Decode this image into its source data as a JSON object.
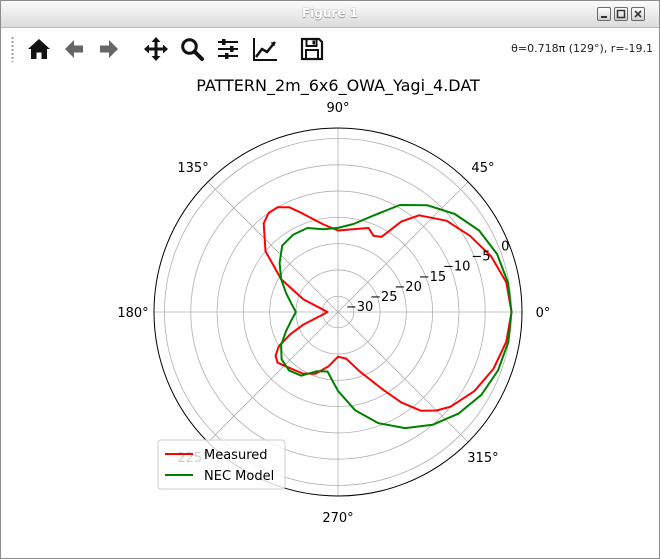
{
  "window": {
    "title": "Figure 1",
    "controls": [
      "minimize",
      "maximize",
      "close"
    ]
  },
  "toolbar": {
    "buttons": [
      {
        "name": "home",
        "icon": "home-icon"
      },
      {
        "name": "back",
        "icon": "arrow-left-icon"
      },
      {
        "name": "forward",
        "icon": "arrow-right-icon"
      },
      {
        "name": "pan",
        "icon": "move-icon"
      },
      {
        "name": "zoom",
        "icon": "magnifier-icon"
      },
      {
        "name": "configure-subplots",
        "icon": "sliders-icon"
      },
      {
        "name": "edit-axis",
        "icon": "line-chart-icon"
      },
      {
        "name": "save",
        "icon": "floppy-disk-icon"
      }
    ],
    "coords": "θ=0.718π (129°), r=-19.1"
  },
  "chart_data": {
    "type": "polar-line",
    "title": "PATTERN_2m_6x6_OWA_Yagi_4.DAT",
    "angle_ticks": [
      "0°",
      "45°",
      "90°",
      "135°",
      "180°",
      "225°",
      "270°",
      "315°"
    ],
    "angle_tick_values": [
      0,
      45,
      90,
      135,
      180,
      225,
      270,
      315
    ],
    "r_ticks": [
      "−30",
      "−25",
      "−20",
      "−15",
      "−10",
      "−5",
      "0"
    ],
    "r_tick_values": [
      -30,
      -25,
      -20,
      -15,
      -10,
      -5,
      0
    ],
    "rlim": [
      -33,
      2
    ],
    "r_label_angle_deg": 22.5,
    "grid": true,
    "legend_loc": "lower-left",
    "series": [
      {
        "name": "Measured",
        "color": "#ff0000",
        "angles_deg": [
          0,
          10,
          20,
          30,
          40,
          50,
          55,
          60,
          65,
          70,
          80,
          90,
          100,
          110,
          115,
          120,
          125,
          130,
          140,
          150,
          160,
          170,
          180,
          190,
          200,
          205,
          210,
          215,
          220,
          230,
          240,
          250,
          260,
          270,
          280,
          290,
          300,
          305,
          310,
          315,
          320,
          330,
          340,
          350
        ],
        "values_db": [
          0.0,
          -0.5,
          -2.0,
          -4.0,
          -6.0,
          -9.0,
          -12.0,
          -16.5,
          -17.0,
          -16.0,
          -17.0,
          -17.5,
          -16.0,
          -13.0,
          -11.0,
          -10.0,
          -10.0,
          -11.0,
          -15.0,
          -20.5,
          -26.0,
          -30.0,
          -31.0,
          -30.0,
          -26.0,
          -23.0,
          -20.0,
          -18.5,
          -18.0,
          -19.0,
          -19.5,
          -20.5,
          -22.5,
          -24.5,
          -24.0,
          -21.0,
          -16.0,
          -12.0,
          -8.5,
          -6.5,
          -5.0,
          -3.0,
          -1.5,
          -0.5
        ]
      },
      {
        "name": "NEC Model",
        "color": "#008000",
        "angles_deg": [
          0,
          10,
          20,
          30,
          40,
          50,
          60,
          70,
          80,
          90,
          100,
          110,
          120,
          130,
          140,
          150,
          160,
          170,
          180,
          190,
          200,
          210,
          220,
          230,
          240,
          250,
          260,
          270,
          280,
          290,
          300,
          310,
          320,
          330,
          340,
          350
        ],
        "values_db": [
          0.0,
          -0.2,
          -0.8,
          -2.0,
          -4.0,
          -6.5,
          -9.5,
          -13.5,
          -16.0,
          -17.0,
          -17.0,
          -16.0,
          -16.0,
          -16.5,
          -18.5,
          -20.5,
          -22.5,
          -24.0,
          -25.0,
          -24.0,
          -22.5,
          -20.5,
          -19.0,
          -18.5,
          -19.0,
          -21.0,
          -21.5,
          -18.0,
          -14.0,
          -10.5,
          -7.5,
          -5.0,
          -3.0,
          -1.5,
          -0.6,
          -0.1
        ]
      }
    ]
  }
}
